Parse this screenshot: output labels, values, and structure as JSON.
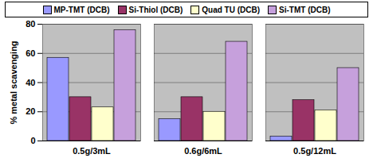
{
  "chart_data": {
    "type": "bar",
    "categories": [
      "0.5g/3mL",
      "0.6g/6mL",
      "0.5g/12mL"
    ],
    "series": [
      {
        "name": "MP-TMT (DCB)",
        "color": "#9999ff",
        "values": [
          57,
          15,
          3
        ]
      },
      {
        "name": "Si-Thiol (DCB)",
        "color": "#993366",
        "values": [
          30,
          30,
          28
        ]
      },
      {
        "name": "Quad TU (DCB)",
        "color": "#ffffcc",
        "values": [
          23,
          20,
          21
        ]
      },
      {
        "name": "Si-TMT (DCB)",
        "color": "#c6a0dc",
        "values": [
          76,
          68,
          50
        ]
      }
    ],
    "y_label": "% metal scavenging",
    "ylim": [
      0,
      80
    ],
    "yticks": [
      0,
      20,
      40,
      60,
      80
    ],
    "grid": true,
    "legend": "top"
  }
}
